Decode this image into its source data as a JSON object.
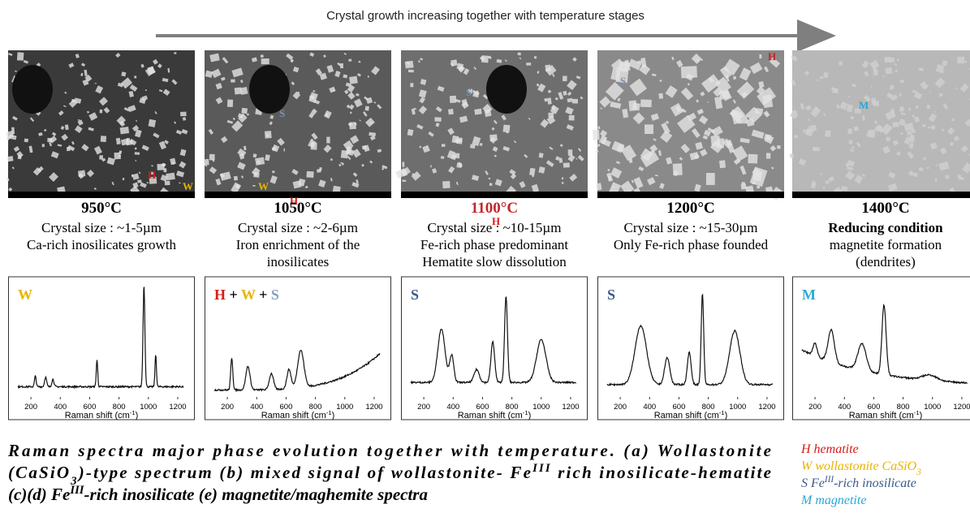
{
  "header": {
    "arrow_label": "Crystal growth increasing together with temperature stages"
  },
  "panels": [
    {
      "temperature": "950°C",
      "temperature_color": "#000000",
      "lines": [
        {
          "text": "Crystal size : ~1-5µm"
        },
        {
          "text": "Ca-rich inosilicates growth"
        }
      ],
      "image_labels": [
        "H",
        "W"
      ],
      "spectrum": {
        "phases": [
          {
            "text": "W",
            "color": "#e8b400"
          }
        ],
        "xticks": [
          "200",
          "400",
          "600",
          "800",
          "1000",
          "1200"
        ],
        "xlabel": [
          {
            "text": "Raman shift (cm"
          },
          {
            "text": "-1",
            "style": "sup"
          },
          {
            "text": ")"
          }
        ]
      }
    },
    {
      "temperature": "1050°C",
      "temperature_color": "#000000",
      "lines": [
        {
          "text": "Crystal size : ~2-6µm"
        },
        {
          "text": "Iron enrichment of the"
        },
        {
          "text": "inosilicates"
        }
      ],
      "image_labels": [
        "S",
        "W",
        "H"
      ],
      "spectrum": {
        "phases": [
          {
            "text": "H",
            "color": "#d81b1b"
          },
          {
            "text": " + ",
            "color": "#000000"
          },
          {
            "text": "W",
            "color": "#e8b400"
          },
          {
            "text": " + ",
            "color": "#000000"
          },
          {
            "text": "S",
            "color": "#8aa0c0"
          }
        ],
        "xticks": [
          "200",
          "400",
          "600",
          "800",
          "1000",
          "1200"
        ],
        "xlabel": [
          {
            "text": "Raman shift (cm"
          },
          {
            "text": "-1",
            "style": "sup"
          },
          {
            "text": ")"
          }
        ]
      }
    },
    {
      "temperature": "1100°C",
      "temperature_color": "#c0282d",
      "lines": [
        {
          "text": "Crystal size : ~10-15µm"
        },
        {
          "text": "Fe-rich phase predominant"
        },
        {
          "text": "Hematite slow dissolution"
        }
      ],
      "image_labels": [
        "S",
        "H"
      ],
      "spectrum": {
        "phases": [
          {
            "text": "S",
            "color": "#3d5a8a"
          }
        ],
        "xticks": [
          "200",
          "400",
          "600",
          "800",
          "1000",
          "1200"
        ],
        "xlabel": [
          {
            "text": "Raman shift (cm"
          },
          {
            "text": "-1",
            "style": "sup"
          },
          {
            "text": ")"
          }
        ]
      }
    },
    {
      "temperature": "1200°C",
      "temperature_color": "#000000",
      "lines": [
        {
          "text": "Crystal size : ~15-30µm"
        },
        {
          "text": "Only Fe-rich phase founded"
        }
      ],
      "image_labels": [
        "S",
        "H"
      ],
      "spectrum": {
        "phases": [
          {
            "text": "S",
            "color": "#3d5a8a"
          }
        ],
        "xticks": [
          "200",
          "400",
          "600",
          "800",
          "1000",
          "1200"
        ],
        "xlabel": [
          {
            "text": "Raman shift (cm"
          },
          {
            "text": "-1",
            "style": "sup"
          },
          {
            "text": ")"
          }
        ]
      }
    },
    {
      "temperature": "1400°C",
      "temperature_color": "#000000",
      "lines": [
        {
          "text": "Reducing condition",
          "style": "bold"
        },
        {
          "text": "magnetite formation"
        },
        {
          "text": "(dendrites)"
        }
      ],
      "image_labels": [
        "M"
      ],
      "spectrum": {
        "phases": [
          {
            "text": "M",
            "color": "#2aa7d8"
          }
        ],
        "xticks": [
          "200",
          "400",
          "600",
          "800",
          "1000",
          "1200"
        ],
        "xlabel": [
          {
            "text": "Raman shift (cm"
          },
          {
            "text": "-1",
            "style": "sup"
          },
          {
            "text": ")"
          }
        ]
      }
    }
  ],
  "caption": {
    "lines": [
      [
        {
          "text": "Raman spectra major phase evolution together with temperature. (a) Wollastonite"
        }
      ],
      [
        {
          "text": "(CaSiO"
        },
        {
          "text": "3",
          "style": "sub"
        },
        {
          "text": ")-type spectrum (b) mixed signal of wollastonite- Fe"
        },
        {
          "text": "III",
          "style": "sup"
        },
        {
          "text": " rich inosilicate-hematite"
        }
      ],
      [
        {
          "text": "(c)(d) Fe"
        },
        {
          "text": "III",
          "style": "sup"
        },
        {
          "text": "-rich inosilicate (e) magnetite/maghemite spectra"
        }
      ]
    ]
  },
  "legend": [
    {
      "color": "#d81b1b",
      "parts": [
        {
          "text": "H hematite"
        }
      ]
    },
    {
      "color": "#e8b400",
      "parts": [
        {
          "text": "W wollastonite CaSiO"
        },
        {
          "text": "3",
          "style": "sub"
        }
      ]
    },
    {
      "color": "#3d5a8a",
      "parts": [
        {
          "text": "S Fe"
        },
        {
          "text": "III",
          "style": "sup"
        },
        {
          "text": "-rich inosilicate"
        }
      ]
    },
    {
      "color": "#2aa7d8",
      "parts": [
        {
          "text": "M magnetite"
        }
      ]
    }
  ]
}
